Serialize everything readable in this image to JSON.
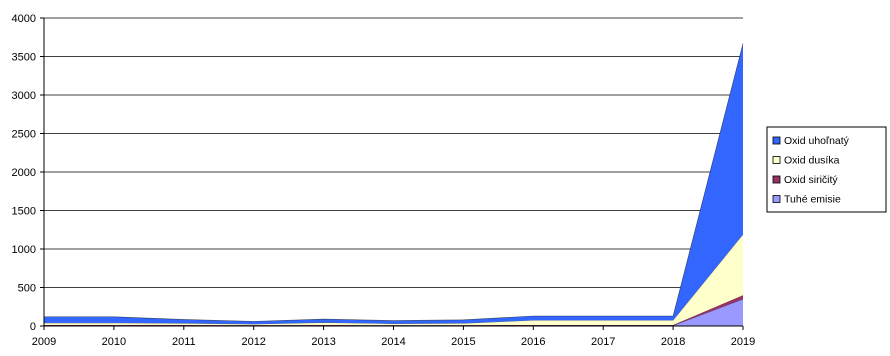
{
  "chart_data": {
    "type": "area",
    "stacked": true,
    "x": [
      "2009",
      "2010",
      "2011",
      "2012",
      "2013",
      "2014",
      "2015",
      "2016",
      "2017",
      "2018",
      "2019"
    ],
    "ylim": [
      0,
      4000
    ],
    "yticks": [
      0,
      500,
      1000,
      1500,
      2000,
      2500,
      3000,
      3500,
      4000
    ],
    "grid": "horizontal",
    "legend_position": "right",
    "series": [
      {
        "name": "Tuhé emisie",
        "color": "#9999ff",
        "values": [
          5,
          5,
          5,
          5,
          5,
          5,
          5,
          5,
          5,
          5,
          350
        ]
      },
      {
        "name": "Oxid siričitý",
        "color": "#993366",
        "values": [
          8,
          8,
          8,
          6,
          8,
          6,
          6,
          8,
          8,
          8,
          50
        ]
      },
      {
        "name": "Oxid dusíka",
        "color": "#ffffcc",
        "values": [
          27,
          27,
          22,
          14,
          32,
          19,
          24,
          62,
          62,
          62,
          790
        ]
      },
      {
        "name": "Oxid uhoľnatý",
        "color": "#3366ff",
        "values": [
          80,
          80,
          50,
          35,
          45,
          40,
          45,
          55,
          55,
          55,
          2480
        ]
      }
    ]
  }
}
